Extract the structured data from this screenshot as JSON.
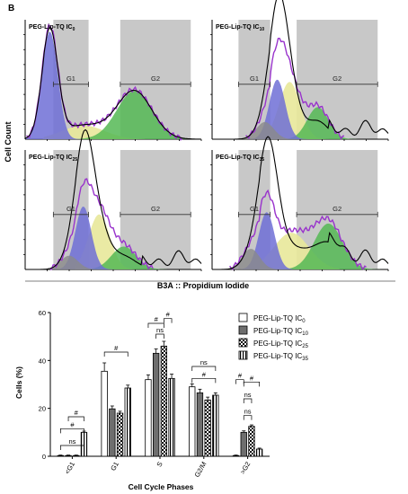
{
  "panel_letter": "B",
  "flow": {
    "ylabel": "Cell Count",
    "xlabel": "B3A :: Propidium Iodide",
    "gate_labels": [
      "G1",
      "G2"
    ],
    "panels": [
      {
        "title_main": "PEG-Lip-TQ IC",
        "title_sub": "0",
        "show_g1_label": true
      },
      {
        "title_main": "PEG-Lip-TQ IC",
        "title_sub": "10",
        "show_g1_label": true
      },
      {
        "title_main": "PEG-Lip-TQ IC",
        "title_sub": "25",
        "show_g1_label": true
      },
      {
        "title_main": "PEG-Lip-TQ IC",
        "title_sub": "35",
        "show_g1_label": true
      }
    ],
    "colors": {
      "gate": "#c8c8c8",
      "g1_fill": "#6f6fd6",
      "s_fill": "#e8e89a",
      "g2_fill": "#55b855",
      "debris_fill": "#8a8a8a",
      "model": "#9933cc",
      "histogram": "#000000"
    }
  },
  "chart_data": {
    "type": "bar",
    "title": "",
    "xlabel": "Cell Cycle Phases",
    "ylabel": "Cells (%)",
    "ylim": [
      0,
      60
    ],
    "yticks": [
      0,
      20,
      40,
      60
    ],
    "categories": [
      "<G1",
      "G1",
      "S",
      "G2/M",
      ">G2"
    ],
    "series": [
      {
        "name_main": "PEG-Lip-TQ IC",
        "name_sub": "0",
        "pattern": "white",
        "values": [
          0.3,
          35.5,
          32.0,
          29.0,
          0.3
        ],
        "errors": [
          0.2,
          3.5,
          2.0,
          1.2,
          0.2
        ]
      },
      {
        "name_main": "PEG-Lip-TQ IC",
        "name_sub": "10",
        "pattern": "darkgray",
        "values": [
          0.3,
          19.8,
          43.0,
          26.5,
          10.0
        ],
        "errors": [
          0.2,
          1.2,
          1.8,
          1.5,
          0.6
        ]
      },
      {
        "name_main": "PEG-Lip-TQ IC",
        "name_sub": "25",
        "pattern": "checker",
        "values": [
          0.3,
          18.0,
          46.0,
          23.5,
          12.5
        ],
        "errors": [
          0.2,
          0.8,
          2.0,
          1.2,
          0.6
        ]
      },
      {
        "name_main": "PEG-Lip-TQ IC",
        "name_sub": "35",
        "pattern": "vstripe",
        "values": [
          10.0,
          28.5,
          32.5,
          25.5,
          3.0
        ],
        "errors": [
          0.5,
          1.2,
          1.8,
          1.0,
          0.4
        ]
      }
    ],
    "annotations": {
      "hash": "#",
      "ns": "ns"
    },
    "legend_position": "top-right"
  }
}
